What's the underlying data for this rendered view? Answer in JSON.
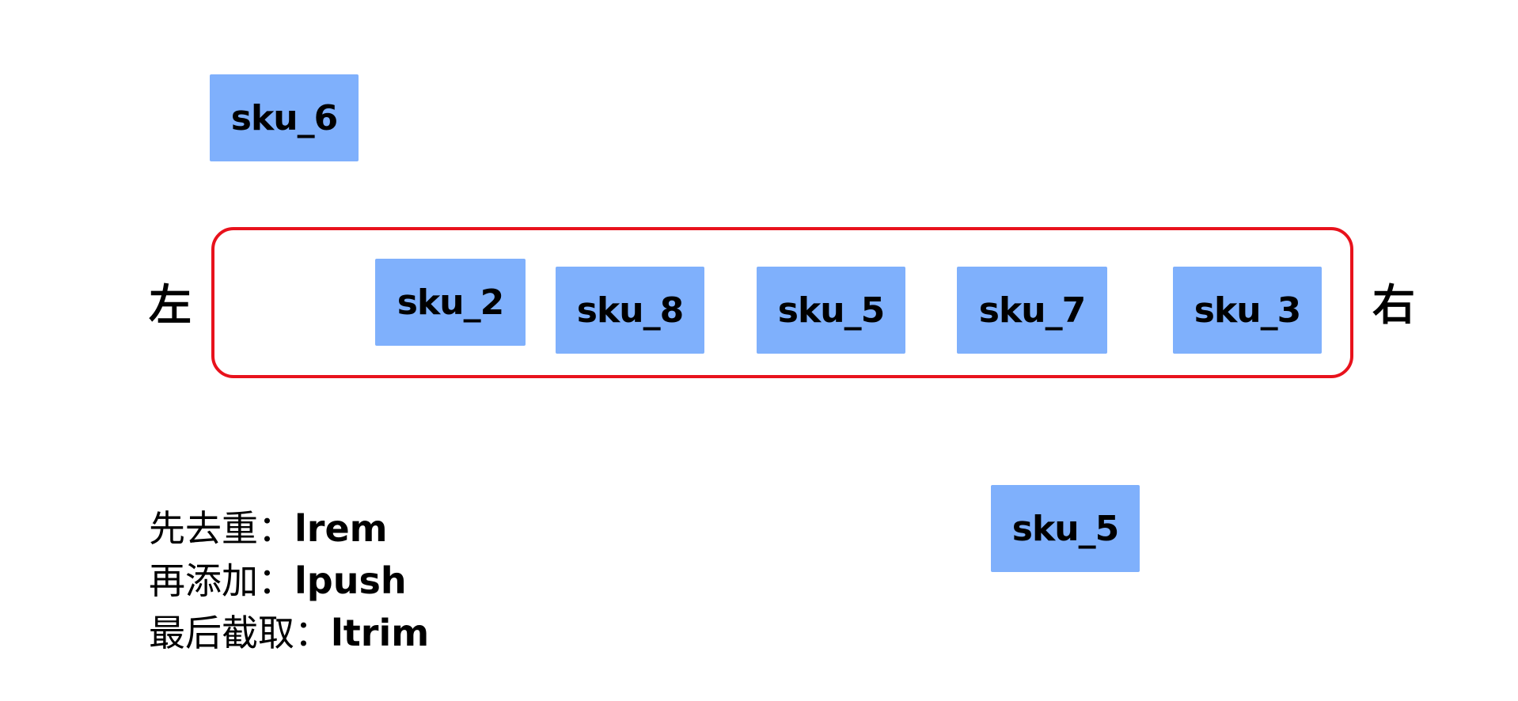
{
  "labels": {
    "left": "左",
    "right": "右"
  },
  "boxes": {
    "incoming_top": "sku_6",
    "list": [
      "sku_2",
      "sku_8",
      "sku_5",
      "sku_7",
      "sku_3"
    ],
    "removed_bottom": "sku_5"
  },
  "notes": [
    {
      "prefix": "先去重：",
      "command": "lrem"
    },
    {
      "prefix": "再添加：",
      "command": "lpush"
    },
    {
      "prefix": "最后截取：",
      "command": "ltrim"
    }
  ],
  "colors": {
    "box_fill": "#7fb0fc",
    "container_border": "#e8121c",
    "text": "#000000"
  }
}
